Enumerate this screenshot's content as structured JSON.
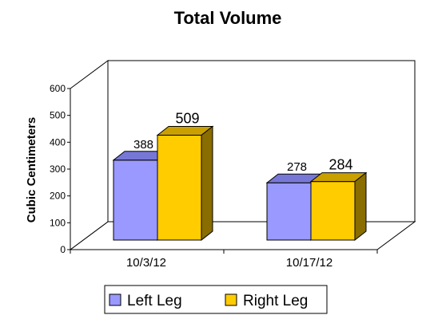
{
  "chart_data": {
    "type": "bar",
    "title": "Total Volume",
    "xlabel": "",
    "ylabel": "Cubic Centimeters",
    "ylim": [
      0,
      600
    ],
    "yticks": [
      "0",
      "100",
      "200",
      "300",
      "400",
      "500",
      "600"
    ],
    "categories": [
      "10/3/12",
      "10/17/12"
    ],
    "series": [
      {
        "name": "Left Leg",
        "values": [
          388,
          278
        ],
        "color": "#9999ff",
        "side_color": "#6666cc",
        "top_color": "#7777d6"
      },
      {
        "name": "Right Leg",
        "values": [
          509,
          284
        ],
        "color": "#ffcc00",
        "side_color": "#8a6d00",
        "top_color": "#c9a000"
      }
    ],
    "data_labels": [
      [
        "388",
        "278"
      ],
      [
        "509",
        "284"
      ]
    ],
    "legend_position": "bottom",
    "grid": false,
    "style": "3d"
  }
}
